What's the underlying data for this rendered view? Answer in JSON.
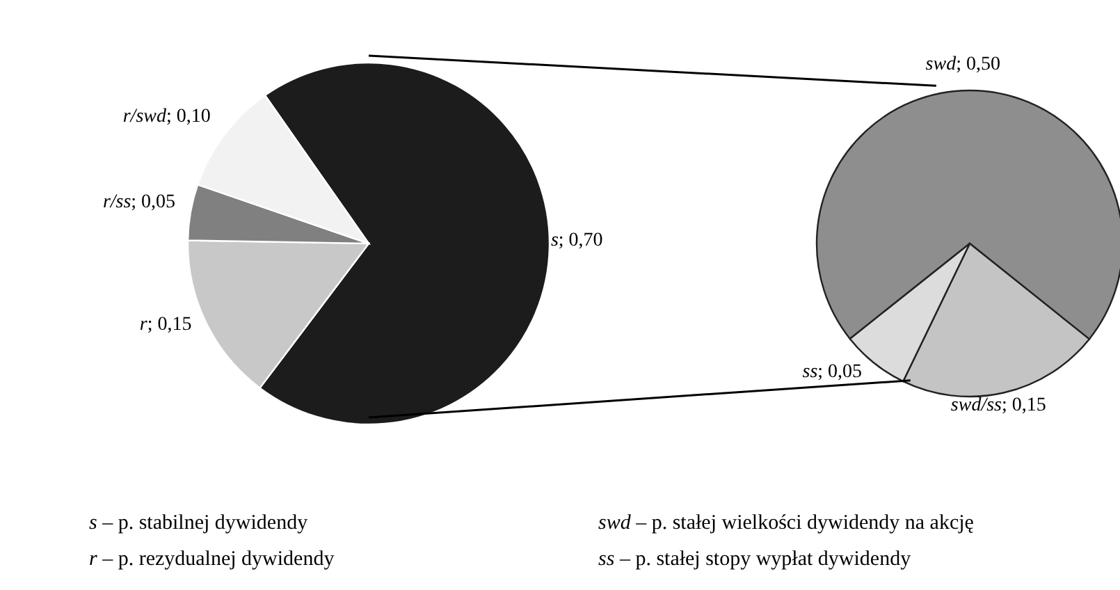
{
  "chart_data": [
    {
      "type": "pie",
      "categories": [
        "s",
        "r",
        "r/ss",
        "r/swd"
      ],
      "values": [
        0.7,
        0.15,
        0.05,
        0.1
      ],
      "colors": [
        "#1c1c1c",
        "#c8c8c8",
        "#808080",
        "#f2f2f2"
      ],
      "value_labels": [
        "; 0,70",
        "; 0,15",
        "; 0,05",
        "; 0,10"
      ],
      "annotations": [
        "s – p. stabilnej dywidendy",
        "r – p. rezydualnej dywidendy",
        "swd – p. stałej wielkości dywidendy na akcję",
        "ss – p. stałej stopy wypłat dywidendy"
      ]
    },
    {
      "type": "pie",
      "categories": [
        "swd",
        "swd/ss",
        "ss"
      ],
      "values": [
        0.5,
        0.15,
        0.05
      ],
      "colors": [
        "#8e8e8e",
        "#c4c4c4",
        "#dcdcdc"
      ],
      "value_labels": [
        "; 0,50",
        "; 0,15",
        "; 0,05"
      ]
    }
  ]
}
